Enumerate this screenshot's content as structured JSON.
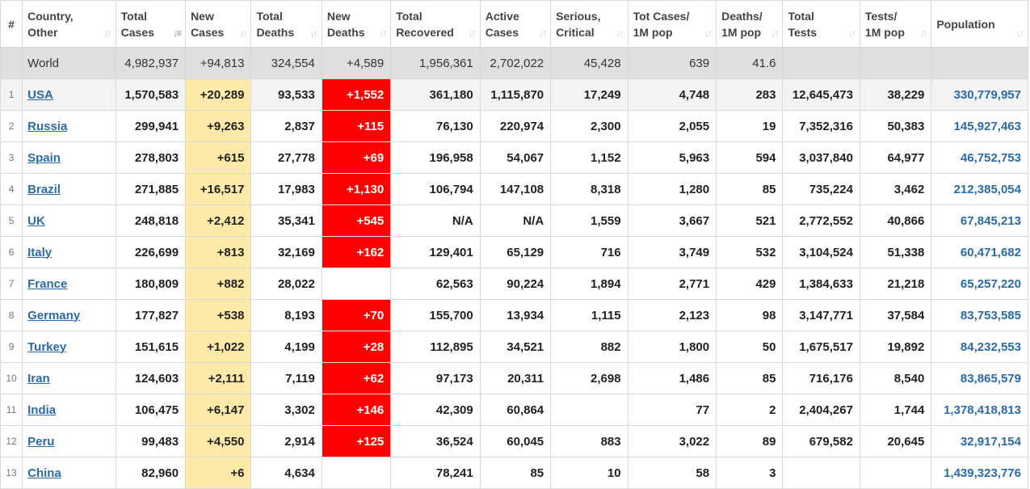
{
  "table": {
    "headers": [
      {
        "key": "rank",
        "line1": "#",
        "line2": ""
      },
      {
        "key": "country",
        "line1": "Country,",
        "line2": "Other"
      },
      {
        "key": "total_cases",
        "line1": "Total",
        "line2": "Cases"
      },
      {
        "key": "new_cases",
        "line1": "New",
        "line2": "Cases"
      },
      {
        "key": "total_deaths",
        "line1": "Total",
        "line2": "Deaths"
      },
      {
        "key": "new_deaths",
        "line1": "New",
        "line2": "Deaths"
      },
      {
        "key": "total_recovered",
        "line1": "Total",
        "line2": "Recovered"
      },
      {
        "key": "active_cases",
        "line1": "Active",
        "line2": "Cases"
      },
      {
        "key": "serious",
        "line1": "Serious,",
        "line2": "Critical"
      },
      {
        "key": "cases_per_1m",
        "line1": "Tot Cases/",
        "line2": "1M pop"
      },
      {
        "key": "deaths_per_1m",
        "line1": "Deaths/",
        "line2": "1M pop"
      },
      {
        "key": "total_tests",
        "line1": "Total",
        "line2": "Tests"
      },
      {
        "key": "tests_per_1m",
        "line1": "Tests/",
        "line2": "1M pop"
      },
      {
        "key": "population",
        "line1": "Population",
        "line2": ""
      }
    ],
    "sort_icon": "sort-arrows-icon",
    "active_sort_icon": "sort-descending-icon",
    "world": {
      "country": "World",
      "total_cases": "4,982,937",
      "new_cases": "+94,813",
      "total_deaths": "324,554",
      "new_deaths": "+4,589",
      "total_recovered": "1,956,361",
      "active_cases": "2,702,022",
      "serious": "45,428",
      "cases_per_1m": "639",
      "deaths_per_1m": "41.6",
      "total_tests": "",
      "tests_per_1m": "",
      "population": ""
    },
    "rows": [
      {
        "rank": "1",
        "country": "USA",
        "total_cases": "1,570,583",
        "new_cases": "+20,289",
        "total_deaths": "93,533",
        "new_deaths": "+1,552",
        "total_recovered": "361,180",
        "active_cases": "1,115,870",
        "serious": "17,249",
        "cases_per_1m": "4,748",
        "deaths_per_1m": "283",
        "total_tests": "12,645,473",
        "tests_per_1m": "38,229",
        "population": "330,779,957"
      },
      {
        "rank": "2",
        "country": "Russia",
        "total_cases": "299,941",
        "new_cases": "+9,263",
        "total_deaths": "2,837",
        "new_deaths": "+115",
        "total_recovered": "76,130",
        "active_cases": "220,974",
        "serious": "2,300",
        "cases_per_1m": "2,055",
        "deaths_per_1m": "19",
        "total_tests": "7,352,316",
        "tests_per_1m": "50,383",
        "population": "145,927,463"
      },
      {
        "rank": "3",
        "country": "Spain",
        "total_cases": "278,803",
        "new_cases": "+615",
        "total_deaths": "27,778",
        "new_deaths": "+69",
        "total_recovered": "196,958",
        "active_cases": "54,067",
        "serious": "1,152",
        "cases_per_1m": "5,963",
        "deaths_per_1m": "594",
        "total_tests": "3,037,840",
        "tests_per_1m": "64,977",
        "population": "46,752,753"
      },
      {
        "rank": "4",
        "country": "Brazil",
        "total_cases": "271,885",
        "new_cases": "+16,517",
        "total_deaths": "17,983",
        "new_deaths": "+1,130",
        "total_recovered": "106,794",
        "active_cases": "147,108",
        "serious": "8,318",
        "cases_per_1m": "1,280",
        "deaths_per_1m": "85",
        "total_tests": "735,224",
        "tests_per_1m": "3,462",
        "population": "212,385,054"
      },
      {
        "rank": "5",
        "country": "UK",
        "total_cases": "248,818",
        "new_cases": "+2,412",
        "total_deaths": "35,341",
        "new_deaths": "+545",
        "total_recovered": "N/A",
        "active_cases": "N/A",
        "serious": "1,559",
        "cases_per_1m": "3,667",
        "deaths_per_1m": "521",
        "total_tests": "2,772,552",
        "tests_per_1m": "40,866",
        "population": "67,845,213"
      },
      {
        "rank": "6",
        "country": "Italy",
        "total_cases": "226,699",
        "new_cases": "+813",
        "total_deaths": "32,169",
        "new_deaths": "+162",
        "total_recovered": "129,401",
        "active_cases": "65,129",
        "serious": "716",
        "cases_per_1m": "3,749",
        "deaths_per_1m": "532",
        "total_tests": "3,104,524",
        "tests_per_1m": "51,338",
        "population": "60,471,682"
      },
      {
        "rank": "7",
        "country": "France",
        "total_cases": "180,809",
        "new_cases": "+882",
        "total_deaths": "28,022",
        "new_deaths": "",
        "total_recovered": "62,563",
        "active_cases": "90,224",
        "serious": "1,894",
        "cases_per_1m": "2,771",
        "deaths_per_1m": "429",
        "total_tests": "1,384,633",
        "tests_per_1m": "21,218",
        "population": "65,257,220"
      },
      {
        "rank": "8",
        "country": "Germany",
        "total_cases": "177,827",
        "new_cases": "+538",
        "total_deaths": "8,193",
        "new_deaths": "+70",
        "total_recovered": "155,700",
        "active_cases": "13,934",
        "serious": "1,115",
        "cases_per_1m": "2,123",
        "deaths_per_1m": "98",
        "total_tests": "3,147,771",
        "tests_per_1m": "37,584",
        "population": "83,753,585"
      },
      {
        "rank": "9",
        "country": "Turkey",
        "total_cases": "151,615",
        "new_cases": "+1,022",
        "total_deaths": "4,199",
        "new_deaths": "+28",
        "total_recovered": "112,895",
        "active_cases": "34,521",
        "serious": "882",
        "cases_per_1m": "1,800",
        "deaths_per_1m": "50",
        "total_tests": "1,675,517",
        "tests_per_1m": "19,892",
        "population": "84,232,553"
      },
      {
        "rank": "10",
        "country": "Iran",
        "total_cases": "124,603",
        "new_cases": "+2,111",
        "total_deaths": "7,119",
        "new_deaths": "+62",
        "total_recovered": "97,173",
        "active_cases": "20,311",
        "serious": "2,698",
        "cases_per_1m": "1,486",
        "deaths_per_1m": "85",
        "total_tests": "716,176",
        "tests_per_1m": "8,540",
        "population": "83,865,579"
      },
      {
        "rank": "11",
        "country": "India",
        "total_cases": "106,475",
        "new_cases": "+6,147",
        "total_deaths": "3,302",
        "new_deaths": "+146",
        "total_recovered": "42,309",
        "active_cases": "60,864",
        "serious": "",
        "cases_per_1m": "77",
        "deaths_per_1m": "2",
        "total_tests": "2,404,267",
        "tests_per_1m": "1,744",
        "population": "1,378,418,813"
      },
      {
        "rank": "12",
        "country": "Peru",
        "total_cases": "99,483",
        "new_cases": "+4,550",
        "total_deaths": "2,914",
        "new_deaths": "+125",
        "total_recovered": "36,524",
        "active_cases": "60,045",
        "serious": "883",
        "cases_per_1m": "3,022",
        "deaths_per_1m": "89",
        "total_tests": "679,582",
        "tests_per_1m": "20,645",
        "population": "32,917,154"
      },
      {
        "rank": "13",
        "country": "China",
        "total_cases": "82,960",
        "new_cases": "+6",
        "total_deaths": "4,634",
        "new_deaths": "",
        "total_recovered": "78,241",
        "active_cases": "85",
        "serious": "10",
        "cases_per_1m": "58",
        "deaths_per_1m": "3",
        "total_tests": "",
        "tests_per_1m": "",
        "population": "1,439,323,776"
      }
    ],
    "colors": {
      "new_cases_bg": "#fde9a8",
      "new_deaths_bg": "#ff0000",
      "world_row_bg": "#dfdfdf",
      "link": "#2a6ba8"
    }
  }
}
